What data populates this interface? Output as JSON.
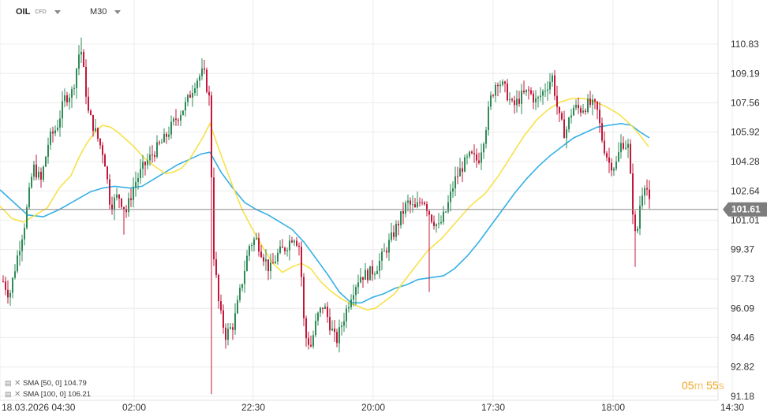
{
  "header": {
    "symbol": "OIL",
    "instrument_type": "CFD",
    "timeframe": "M30"
  },
  "legend": [
    {
      "label": "SMA [50, 0] 104.79",
      "color": "#f2e03a"
    },
    {
      "label": "SMA [100, 0] 106.21",
      "color": "#2eaee8"
    }
  ],
  "timer": {
    "minutes": "05",
    "m_unit": "m",
    "seconds": "55",
    "s_unit": "s"
  },
  "colors": {
    "up": "#2e8b57",
    "down": "#c2183b",
    "sma50": "#f7e14a",
    "sma100": "#35b0e6"
  },
  "chart_data": {
    "type": "candlestick",
    "instrument": "OIL CFD",
    "timeframe": "M30",
    "current_price": "101.61",
    "y_ticks": [
      "110.83",
      "109.19",
      "107.56",
      "105.92",
      "104.28",
      "102.64",
      "101.01",
      "99.37",
      "97.73",
      "96.09",
      "94.46",
      "92.82",
      "91.18"
    ],
    "x_ticks": [
      "18.03.2026 04:30",
      "02:00",
      "22:30",
      "20:00",
      "17:30",
      "18:00",
      "14:30"
    ],
    "ylim": [
      90.9,
      112.3
    ],
    "series": [
      {
        "name": "SMA [50, 0] 104.79",
        "values": [
          [
            0,
            101.8
          ],
          [
            15,
            101.1
          ],
          [
            30,
            100.9
          ],
          [
            45,
            101.3
          ],
          [
            60,
            101.7
          ],
          [
            75,
            102.8
          ],
          [
            90,
            103.5
          ],
          [
            100,
            104.5
          ],
          [
            110,
            105.3
          ],
          [
            120,
            105.9
          ],
          [
            130,
            106.3
          ],
          [
            140,
            106.2
          ],
          [
            150,
            105.9
          ],
          [
            160,
            105.5
          ],
          [
            170,
            105.1
          ],
          [
            180,
            104.6
          ],
          [
            190,
            104.2
          ],
          [
            200,
            103.9
          ],
          [
            210,
            103.6
          ],
          [
            220,
            103.7
          ],
          [
            230,
            103.9
          ],
          [
            240,
            104.4
          ],
          [
            250,
            105.1
          ],
          [
            258,
            105.7
          ],
          [
            266,
            106.4
          ],
          [
            274,
            105.4
          ],
          [
            283,
            104.3
          ],
          [
            295,
            102.9
          ],
          [
            307,
            101.6
          ],
          [
            320,
            100.5
          ],
          [
            333,
            99.5
          ],
          [
            346,
            98.6
          ],
          [
            358,
            98.1
          ],
          [
            370,
            98.4
          ],
          [
            382,
            98.6
          ],
          [
            394,
            98.3
          ],
          [
            406,
            97.6
          ],
          [
            418,
            97.1
          ],
          [
            430,
            96.7
          ],
          [
            442,
            96.4
          ],
          [
            454,
            96.2
          ],
          [
            465,
            96.0
          ],
          [
            476,
            96.1
          ],
          [
            488,
            96.5
          ],
          [
            500,
            96.9
          ],
          [
            512,
            97.6
          ],
          [
            526,
            98.4
          ],
          [
            542,
            99.3
          ],
          [
            560,
            100.0
          ],
          [
            578,
            100.9
          ],
          [
            596,
            101.8
          ],
          [
            615,
            102.5
          ],
          [
            632,
            103.5
          ],
          [
            648,
            104.6
          ],
          [
            664,
            105.7
          ],
          [
            680,
            106.6
          ],
          [
            695,
            107.2
          ],
          [
            710,
            107.6
          ],
          [
            725,
            107.8
          ],
          [
            740,
            107.8
          ],
          [
            755,
            107.6
          ],
          [
            770,
            107.3
          ],
          [
            785,
            106.9
          ],
          [
            800,
            106.3
          ],
          [
            812,
            105.7
          ],
          [
            822,
            105.1
          ]
        ]
      },
      {
        "name": "SMA [100, 0] 106.21",
        "values": [
          [
            0,
            102.7
          ],
          [
            20,
            101.9
          ],
          [
            35,
            101.3
          ],
          [
            55,
            101.2
          ],
          [
            75,
            101.6
          ],
          [
            95,
            102.1
          ],
          [
            115,
            102.6
          ],
          [
            130,
            102.8
          ],
          [
            145,
            102.9
          ],
          [
            165,
            102.8
          ],
          [
            180,
            102.9
          ],
          [
            195,
            103.3
          ],
          [
            210,
            103.7
          ],
          [
            225,
            104.1
          ],
          [
            240,
            104.4
          ],
          [
            255,
            104.7
          ],
          [
            266,
            104.8
          ],
          [
            280,
            103.7
          ],
          [
            295,
            102.8
          ],
          [
            310,
            102.0
          ],
          [
            325,
            101.6
          ],
          [
            340,
            101.3
          ],
          [
            355,
            100.9
          ],
          [
            370,
            100.5
          ],
          [
            385,
            99.8
          ],
          [
            400,
            98.9
          ],
          [
            415,
            98.0
          ],
          [
            430,
            97.0
          ],
          [
            445,
            96.4
          ],
          [
            458,
            96.4
          ],
          [
            472,
            96.7
          ],
          [
            486,
            96.9
          ],
          [
            500,
            97.2
          ],
          [
            515,
            97.4
          ],
          [
            530,
            97.7
          ],
          [
            545,
            97.8
          ],
          [
            562,
            97.9
          ],
          [
            576,
            98.3
          ],
          [
            592,
            99.0
          ],
          [
            607,
            99.8
          ],
          [
            622,
            100.7
          ],
          [
            637,
            101.6
          ],
          [
            652,
            102.5
          ],
          [
            667,
            103.3
          ],
          [
            682,
            104.0
          ],
          [
            697,
            104.6
          ],
          [
            712,
            105.1
          ],
          [
            727,
            105.6
          ],
          [
            742,
            105.9
          ],
          [
            757,
            106.2
          ],
          [
            772,
            106.3
          ],
          [
            787,
            106.4
          ],
          [
            800,
            106.3
          ],
          [
            812,
            105.9
          ],
          [
            823,
            105.6
          ]
        ]
      }
    ]
  }
}
